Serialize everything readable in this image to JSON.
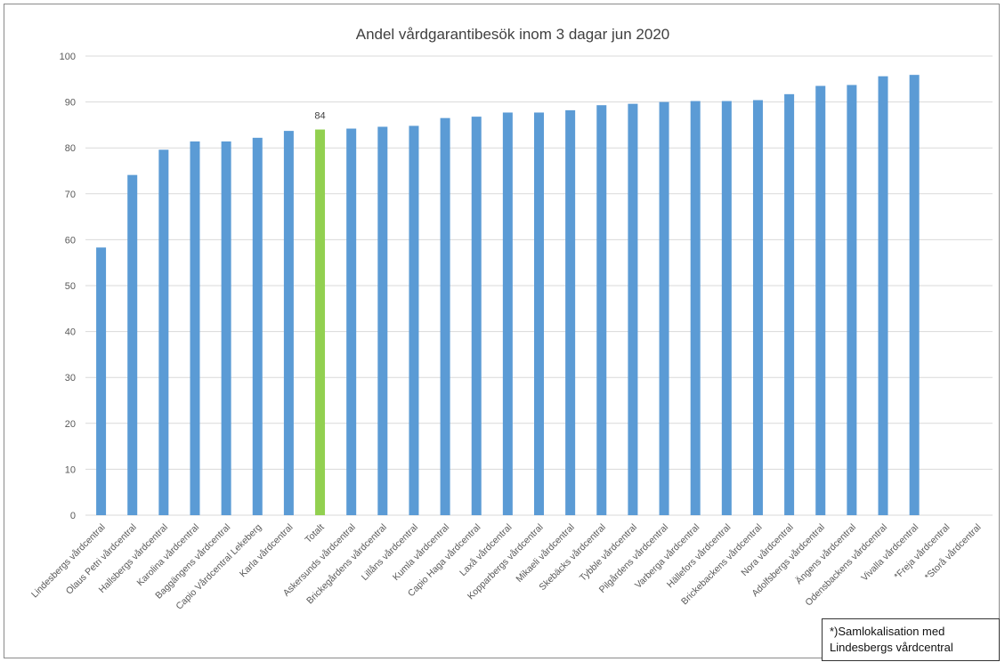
{
  "note": {
    "line1": "*)Samlokalisation med",
    "line2": "Lindesbergs vårdcentral"
  },
  "colors": {
    "bar": "#5b9bd5",
    "highlight": "#92d050",
    "grid": "#d9d9d9"
  },
  "chart_data": {
    "type": "bar",
    "title": "Andel vårdgarantibesök inom 3 dagar jun 2020",
    "xlabel": "",
    "ylabel": "",
    "ylim": [
      0,
      100
    ],
    "yticks": [
      0,
      10,
      20,
      30,
      40,
      50,
      60,
      70,
      80,
      90,
      100
    ],
    "grid": true,
    "categories": [
      "Lindesbergs vårdcentral",
      "Olaus Petri vårdcentral",
      "Hallsbergs vårdcentral",
      "Karolina vårdcentral",
      "Baggängens vårdcentral",
      "Capio Vårdcentral Lekeberg",
      "Karla vårdcentral",
      "Totalt",
      "Askersunds vårdcentral",
      "Brickegårdens vårdcentral",
      "Lillåns vårdcentral",
      "Kumla vårdcentral",
      "Capio Haga vårdcentral",
      "Laxå vårdcentral",
      "Kopparbergs vårdcentral",
      "Mikaeli vårdcentral",
      "Skebäcks vårdcentral",
      "Tybble vårdcentral",
      "Pilgårdens vårdcentral",
      "Varberga vårdcentral",
      "Hällefors vårdcentral",
      "Brickebackens vårdcentral",
      "Nora vårdcentral",
      "Adolfsbergs vårdcentral",
      "Ängens vårdcentral",
      "Odensbackens vårdcentral",
      "Vivalla vårdcentral",
      "*Freja vårdcentral",
      "*Storå vårdcentral"
    ],
    "values": [
      58.3,
      74.1,
      79.6,
      81.4,
      81.4,
      82.2,
      83.7,
      84,
      84.2,
      84.6,
      84.8,
      86.5,
      86.8,
      87.7,
      87.7,
      88.2,
      89.3,
      89.6,
      90.0,
      90.2,
      90.2,
      90.4,
      91.7,
      93.5,
      93.7,
      95.6,
      95.9,
      null,
      null
    ],
    "highlight_index": 7,
    "data_labels": [
      {
        "category": "Totalt",
        "text": "84"
      }
    ]
  }
}
